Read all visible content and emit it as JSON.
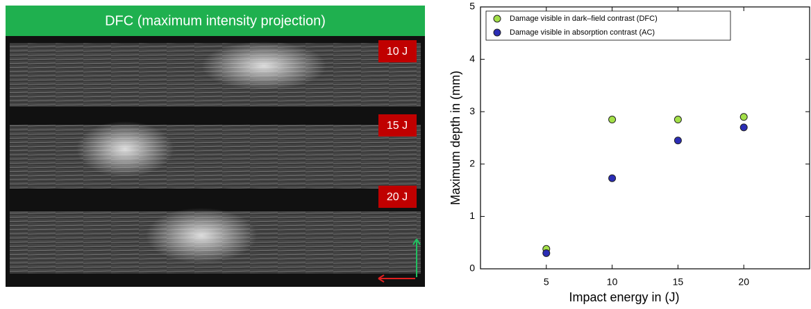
{
  "panel": {
    "title": "DFC (maximum intensity projection)",
    "labels": [
      "10 J",
      "15 J",
      "20 J"
    ]
  },
  "chart_data": {
    "type": "scatter",
    "x": [
      5,
      10,
      15,
      20
    ],
    "series": [
      {
        "name": "Damage visible in dark–field contrast (DFC)",
        "color": "#a3e048",
        "values": [
          0.38,
          2.85,
          2.85,
          2.9
        ]
      },
      {
        "name": "Damage visible in absorption contrast (AC)",
        "color": "#2b2db5",
        "values": [
          0.3,
          1.73,
          2.45,
          2.7
        ]
      }
    ],
    "xlabel": "Impact energy in (J)",
    "ylabel": "Maximum depth in (mm)",
    "xlim": [
      0,
      25
    ],
    "ylim": [
      0,
      5
    ],
    "xticks": [
      5,
      10,
      15,
      20
    ],
    "yticks": [
      0,
      1,
      2,
      3,
      4,
      5
    ],
    "legend": "upper left",
    "grid": false
  }
}
